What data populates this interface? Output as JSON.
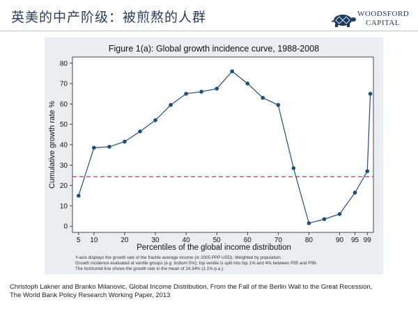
{
  "slide": {
    "title": "英美的中产阶级：被煎熬的人群",
    "logo_line1": "WOODSFORD",
    "logo_line2": "CAPITAL",
    "logo_icon": "turtle-logo-icon"
  },
  "chart_data": {
    "type": "line",
    "title": "Figure 1(a): Global growth incidence curve, 1988-2008",
    "xlabel": "Percentiles of the global income distribution",
    "ylabel": "Cumulative growth rate %",
    "x": [
      5,
      10,
      15,
      20,
      25,
      30,
      35,
      40,
      45,
      50,
      55,
      60,
      65,
      70,
      75,
      80,
      85,
      90,
      95,
      99,
      100
    ],
    "values": [
      15,
      38.5,
      39,
      41.5,
      46.5,
      52,
      59.5,
      65,
      66,
      67.5,
      76,
      70,
      63,
      59.5,
      28.5,
      1.5,
      3.5,
      6,
      16.5,
      27,
      65
    ],
    "xticks": [
      5,
      10,
      20,
      30,
      40,
      50,
      60,
      70,
      80,
      90,
      95,
      99
    ],
    "yticks": [
      0,
      10,
      20,
      30,
      40,
      50,
      60,
      70,
      80
    ],
    "xlim": [
      3,
      101
    ],
    "ylim": [
      -3,
      83
    ],
    "reference_line": {
      "value": 24.34
    },
    "notes": [
      "Y-axis displays the growth rate of the fractile average income (in 2005 PPP USD). Weighted by population.",
      "Growth incidence evaluated at ventile groups (e.g. bottom 5%); top ventile is split into top 1% and 4% between P95 and P99.",
      "The horizontal line shows the growth rate in the mean of 24.34% (1.1% p.a.)."
    ],
    "grid": false,
    "colors": {
      "line": "#1f4e79",
      "marker": "#1f4e79",
      "reference": "#c8364a",
      "panel": "#e9eef2"
    }
  },
  "citation": {
    "line1": "Christoph Lakner and Branko Milanovic, Global Income Distribution, From the Fall of the Berlin Wall to the Great Recession,",
    "line2": "The World Bank Policy Research Working Paper, 2013"
  }
}
